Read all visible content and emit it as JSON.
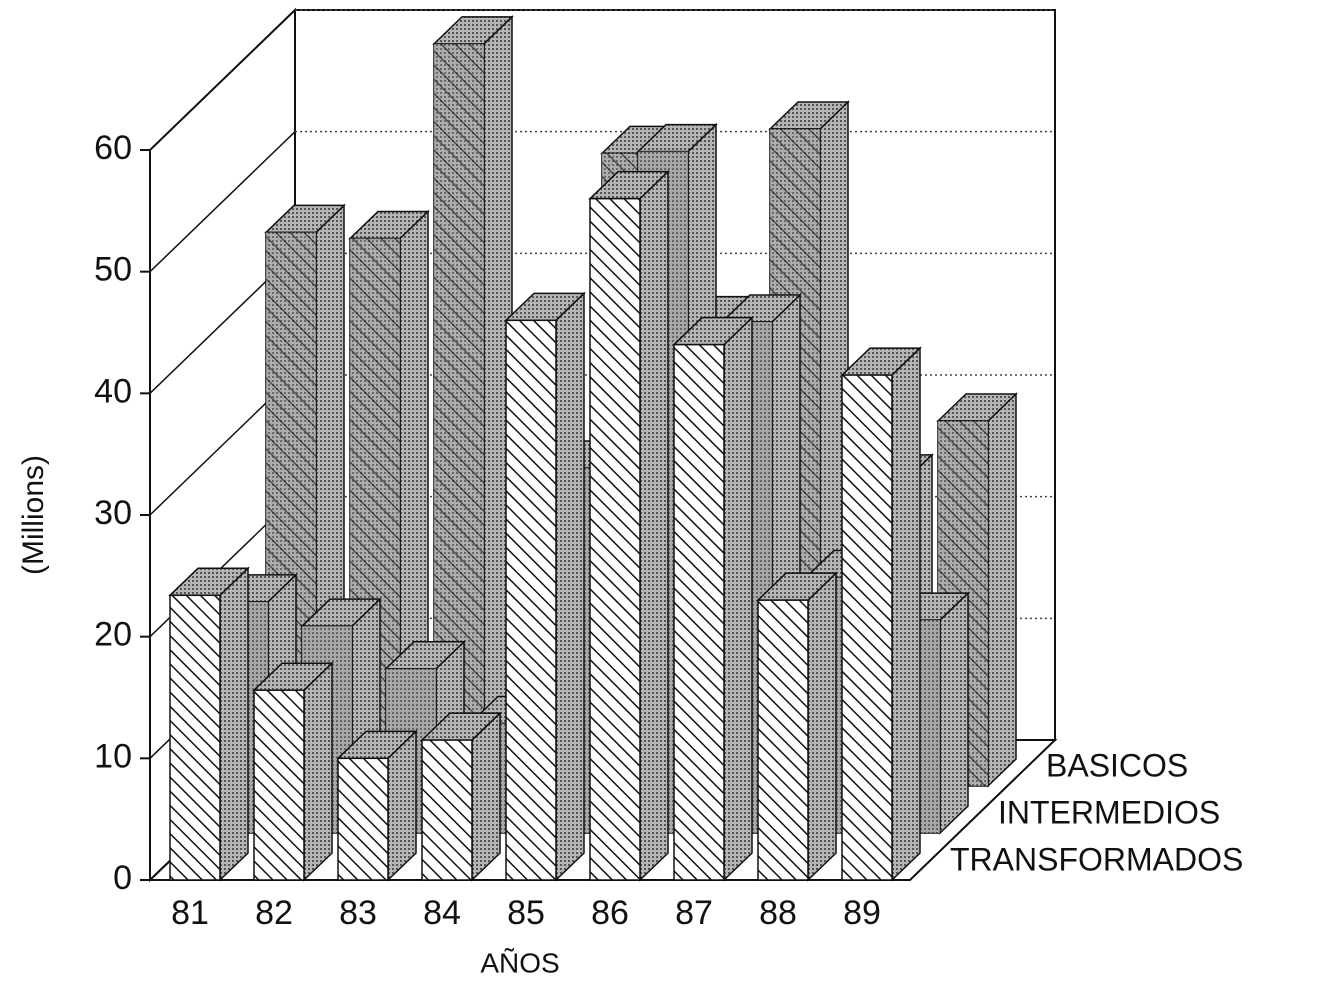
{
  "chart_data": {
    "type": "bar3d",
    "y_label": "(Millions)",
    "x_label": "AÑOS",
    "categories": [
      "81",
      "82",
      "83",
      "84",
      "85",
      "86",
      "87",
      "88",
      "89"
    ],
    "series": [
      {
        "name": "TRANSFORMADOS",
        "color": "#ffffff",
        "values": [
          23.4,
          15.6,
          10,
          11.5,
          46,
          56,
          44,
          23,
          41.5
        ]
      },
      {
        "name": "INTERMEDIOS",
        "color": "#8a8a8a",
        "values": [
          19,
          17,
          13.5,
          9,
          30,
          56,
          42,
          21,
          17.5
        ]
      },
      {
        "name": "BASICOS",
        "color": "#9a9a9a",
        "values": [
          45.5,
          45,
          61,
          14,
          52,
          38,
          54,
          25,
          30
        ]
      }
    ],
    "ylim": [
      0,
      60
    ],
    "yticks": [
      0,
      10,
      20,
      30,
      40,
      50,
      60
    ],
    "grid": true
  }
}
